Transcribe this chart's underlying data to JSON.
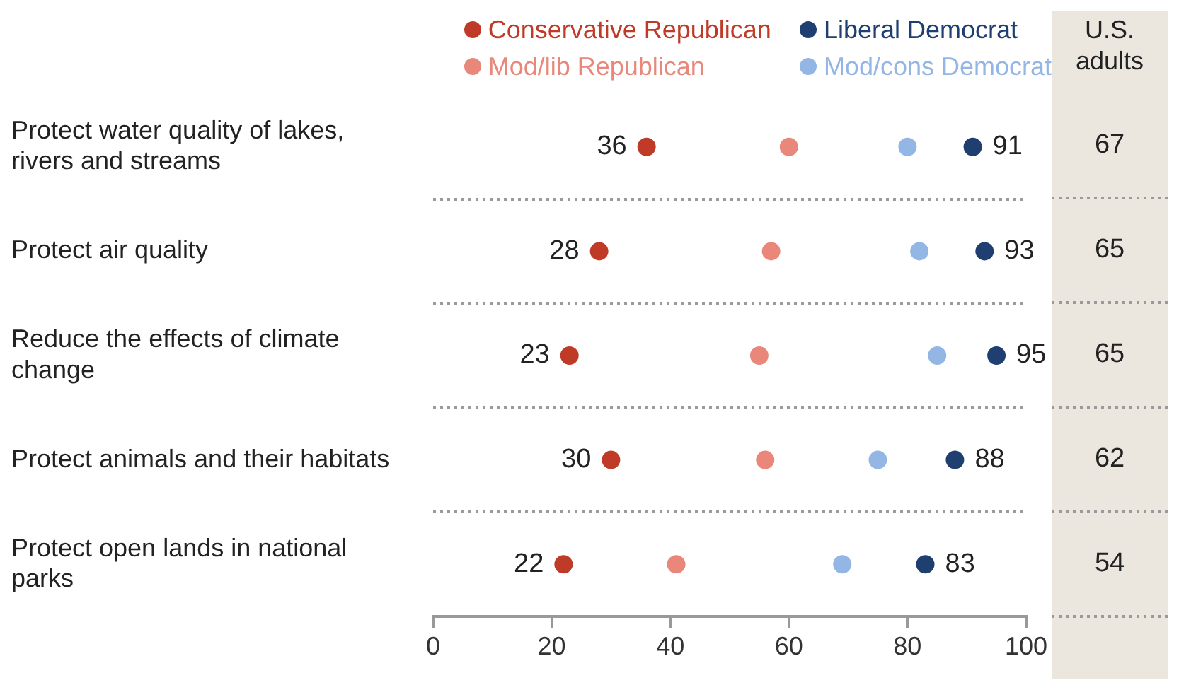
{
  "chart_data": [
    {
      "type": "scatter",
      "orientation": "horizontal",
      "categories": [
        "Protect water quality of lakes, rivers and streams",
        "Protect air quality",
        "Reduce the effects of climate change",
        "Protect animals and their habitats",
        "Protect open lands in national parks"
      ],
      "series": [
        {
          "name": "Conservative Republican",
          "color": "#bf3b27",
          "values": [
            36,
            28,
            23,
            30,
            22
          ],
          "value_labels": [
            "36",
            "28",
            "23",
            "30",
            "22"
          ]
        },
        {
          "name": "Mod/lib Republican",
          "color": "#e9877a",
          "values": [
            60,
            57,
            55,
            56,
            41
          ]
        },
        {
          "name": "Liberal Democrat",
          "color": "#1e3f6f",
          "values": [
            91,
            93,
            95,
            88,
            83
          ],
          "value_labels": [
            "91",
            "93",
            "95",
            "88",
            "83"
          ]
        },
        {
          "name": "Mod/cons Democrat",
          "color": "#93b6e4",
          "values": [
            80,
            82,
            85,
            75,
            69
          ]
        }
      ],
      "xlim": [
        0,
        100
      ],
      "xticks": [
        0,
        20,
        40,
        60,
        80,
        100
      ],
      "grid": "y",
      "legend": "top",
      "marker": "circle"
    },
    {
      "type": "other",
      "title": "U.S. adults",
      "values": [
        67,
        65,
        65,
        62,
        54
      ],
      "data_labels": true
    }
  ]
}
